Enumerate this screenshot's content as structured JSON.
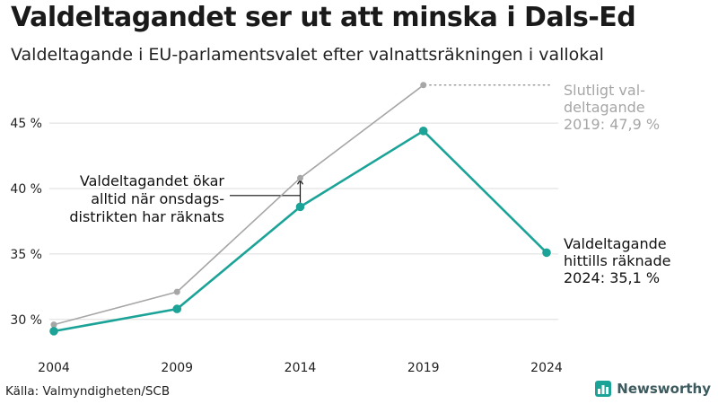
{
  "header": {
    "title": "Valdeltagandet ser ut att minska i Dals-Ed",
    "subtitle": "Valdeltagande i EU-parlamentsvalet efter valnattsräkningen i vallokal"
  },
  "footer": {
    "source": "Källa: Valmyndigheten/SCB",
    "brand": "Newsworthy",
    "brand_icon": "bar-chart-logo-icon"
  },
  "colors": {
    "primary_series": "#1ba398",
    "final_series": "#a6a6a6",
    "grid": "#dddddd",
    "annotation_text": "#111111",
    "final_label_text": "#a6a6a6",
    "brand": "#3d5a5e"
  },
  "chart_data": {
    "type": "line",
    "x": [
      "2004",
      "2009",
      "2014",
      "2019",
      "2024"
    ],
    "y_ticks": [
      "30 %",
      "35 %",
      "40 %",
      "45 %"
    ],
    "y_tick_values": [
      30,
      35,
      40,
      45
    ],
    "ylim": [
      28.2,
      49.6
    ],
    "grid": true,
    "series": [
      {
        "key": "final",
        "values": [
          29.6,
          32.1,
          40.8,
          47.9,
          null
        ]
      },
      {
        "key": "counted",
        "values": [
          29.1,
          30.8,
          38.6,
          44.4,
          35.1
        ]
      }
    ],
    "annotations": {
      "final_label": [
        "Slutligt val-",
        "deltagande",
        "2019: 47,9 %"
      ],
      "counted_label": [
        "Valdeltagande",
        "hittills räknade",
        "2024: 35,1 %"
      ],
      "gap_note": [
        "Valdeltagandet ökar",
        "alltid när onsdags-",
        "distrikten har räknats"
      ]
    }
  }
}
